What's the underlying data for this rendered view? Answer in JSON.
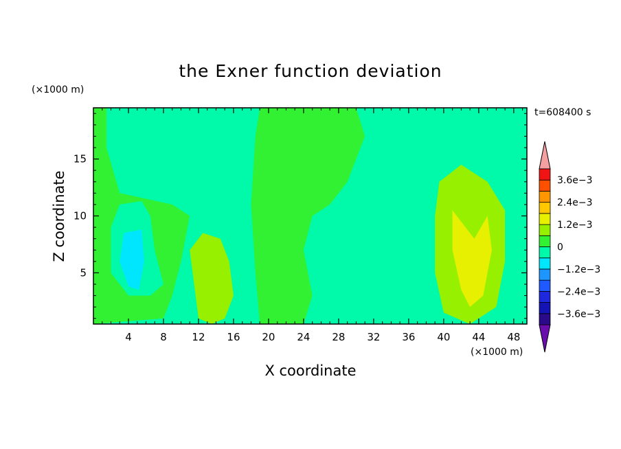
{
  "chart_data": {
    "type": "heatmap",
    "title": "the Exner function deviation",
    "xlabel": "X coordinate",
    "ylabel": "Z coordinate",
    "x_unit": "(×1000 m)",
    "z_unit": "(×1000 m)",
    "time_label": "t=608400 s",
    "xlim": [
      0,
      49.5
    ],
    "ylim": [
      0.5,
      19.5
    ],
    "x_ticks": [
      4,
      8,
      12,
      16,
      20,
      24,
      28,
      32,
      36,
      40,
      44,
      48
    ],
    "y_ticks": [
      5,
      10,
      15
    ],
    "colorbar": {
      "levels": [
        -0.0042,
        -0.0036,
        -0.003,
        -0.0024,
        -0.0018,
        -0.0012,
        -0.0006,
        0,
        0.0006,
        0.0012,
        0.0018,
        0.0024,
        0.003,
        0.0036,
        0.0042
      ],
      "colors": [
        "#6a0dad",
        "#2b0a8a",
        "#1414b4",
        "#1e28dc",
        "#1e5aff",
        "#1e96ff",
        "#00e6ff",
        "#00faaa",
        "#32f032",
        "#96f000",
        "#e6f000",
        "#ffc800",
        "#ff9600",
        "#ff5000",
        "#f01414",
        "#f5a0a0"
      ],
      "labels": [
        {
          "text": "3.6e−3",
          "value": 0.0036
        },
        {
          "text": "2.4e−3",
          "value": 0.0024
        },
        {
          "text": "1.2e−3",
          "value": 0.0012
        },
        {
          "text": "0",
          "value": 0
        },
        {
          "text": "−1.2e−3",
          "value": -0.0012
        },
        {
          "text": "−2.4e−3",
          "value": -0.0024
        },
        {
          "text": "−3.6e−3",
          "value": -0.0036
        }
      ]
    },
    "field_regions": [
      {
        "name": "upper-left",
        "value": 0.0003,
        "polygon": [
          [
            1.5,
            19.5
          ],
          [
            1.5,
            16
          ],
          [
            3,
            12
          ],
          [
            9,
            11
          ],
          [
            11,
            10
          ],
          [
            10,
            6
          ],
          [
            9,
            3
          ],
          [
            8,
            1
          ],
          [
            0,
            0.5
          ],
          [
            0,
            19.5
          ]
        ]
      },
      {
        "name": "left-core",
        "value": -0.0003,
        "polygon": [
          [
            3,
            11
          ],
          [
            5.5,
            11.3
          ],
          [
            6.5,
            10
          ],
          [
            7,
            7
          ],
          [
            8,
            4
          ],
          [
            6.5,
            3
          ],
          [
            4,
            3
          ],
          [
            2,
            5
          ],
          [
            2,
            9
          ]
        ]
      },
      {
        "name": "left-inner",
        "value": -0.0009,
        "polygon": [
          [
            3.5,
            8.5
          ],
          [
            5.5,
            8.8
          ],
          [
            5.8,
            6
          ],
          [
            5.2,
            3.5
          ],
          [
            4,
            3.8
          ],
          [
            3,
            6
          ]
        ]
      },
      {
        "name": "positive-blob-14",
        "value": 0.0009,
        "polygon": [
          [
            11,
            7
          ],
          [
            12.5,
            8.5
          ],
          [
            14.5,
            8
          ],
          [
            15.5,
            6
          ],
          [
            16,
            3
          ],
          [
            15,
            1
          ],
          [
            13.5,
            0.5
          ],
          [
            12,
            1
          ],
          [
            11.5,
            4
          ]
        ]
      },
      {
        "name": "center-neutral",
        "value": 0.0003,
        "polygon": [
          [
            19,
            19.5
          ],
          [
            30,
            19.5
          ],
          [
            31,
            17
          ],
          [
            29,
            13
          ],
          [
            27,
            11
          ],
          [
            25,
            10
          ],
          [
            24,
            7
          ],
          [
            25,
            3
          ],
          [
            24,
            0.5
          ],
          [
            19,
            0.5
          ],
          [
            18.5,
            5
          ],
          [
            18,
            11
          ],
          [
            18.5,
            17
          ]
        ]
      },
      {
        "name": "center-core",
        "value": -0.0003,
        "polygon": [
          [
            27,
            11
          ],
          [
            29,
            11.8
          ],
          [
            31,
            11
          ],
          [
            32,
            8
          ],
          [
            31,
            5
          ],
          [
            29,
            5.5
          ],
          [
            27,
            7
          ]
        ]
      },
      {
        "name": "right-positive",
        "value": 0.0009,
        "polygon": [
          [
            39.5,
            13
          ],
          [
            42,
            14.5
          ],
          [
            45,
            13
          ],
          [
            47,
            10.5
          ],
          [
            47,
            6
          ],
          [
            46,
            2
          ],
          [
            43,
            0.5
          ],
          [
            40,
            1.5
          ],
          [
            39,
            5
          ],
          [
            39,
            10
          ]
        ]
      },
      {
        "name": "right-core",
        "value": 0.0015,
        "polygon": [
          [
            41,
            10.5
          ],
          [
            43.5,
            8
          ],
          [
            45,
            10
          ],
          [
            45.5,
            7
          ],
          [
            44.5,
            3
          ],
          [
            43,
            2
          ],
          [
            42,
            3.5
          ],
          [
            41,
            7
          ]
        ]
      }
    ]
  }
}
